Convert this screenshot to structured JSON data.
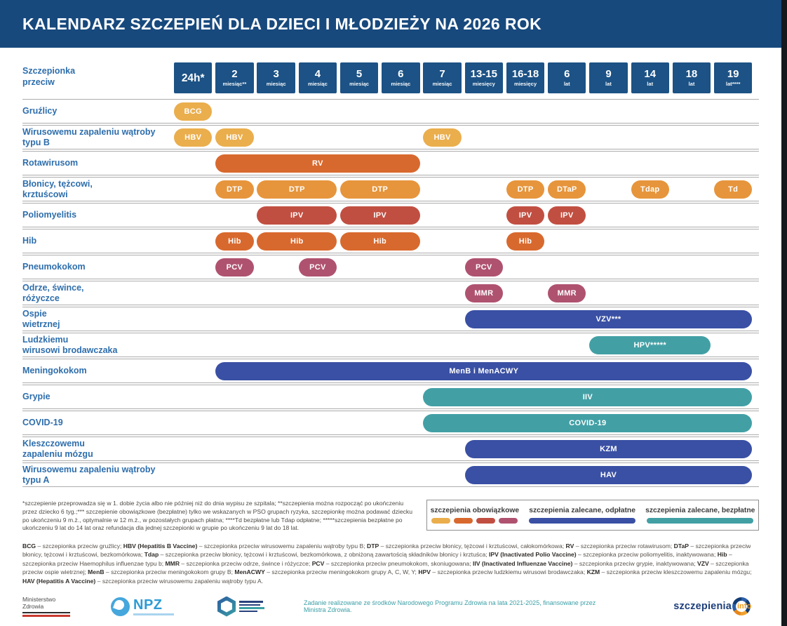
{
  "title": "KALENDARZ SZCZEPIEŃ DLA DZIECI I MŁODZIEŻY NA 2026 ROK",
  "header": {
    "row_label": "Szczepionka\nprzeciw"
  },
  "palette": {
    "yellow": "#EAAE4D",
    "orange": "#E6953C",
    "dark_orange": "#D8692E",
    "red": "#C14F41",
    "maroon": "#AF5270",
    "blue": "#3A50A4",
    "teal": "#42A0A5",
    "navy_title": "#17497D",
    "navy_header_cell": "#1C5285",
    "label_blue": "#2E6EAC"
  },
  "chart_data": {
    "type": "table",
    "title": "KALENDARZ SZCZEPIEŃ DLA DZIECI I MŁODZIEŻY NA 2026 ROK",
    "columns": [
      {
        "age": "24h*",
        "unit": ""
      },
      {
        "age": "2",
        "unit": "miesiąc**"
      },
      {
        "age": "3",
        "unit": "miesiąc"
      },
      {
        "age": "4",
        "unit": "miesiąc"
      },
      {
        "age": "5",
        "unit": "miesiąc"
      },
      {
        "age": "6",
        "unit": "miesiąc"
      },
      {
        "age": "7",
        "unit": "miesiąc"
      },
      {
        "age": "13-15",
        "unit": "miesięcy"
      },
      {
        "age": "16-18",
        "unit": "miesięcy"
      },
      {
        "age": "6",
        "unit": "lat"
      },
      {
        "age": "9",
        "unit": "lat"
      },
      {
        "age": "14",
        "unit": "lat"
      },
      {
        "age": "18",
        "unit": "lat"
      },
      {
        "age": "19",
        "unit": "lat****"
      }
    ],
    "rows": [
      {
        "label": "Gruźlicy",
        "marks": [
          {
            "text": "BCG",
            "col_start": 0,
            "col_end": 0,
            "color": "yellow"
          }
        ]
      },
      {
        "label": "Wirusowemu zapaleniu wątroby\ntypu B",
        "marks": [
          {
            "text": "HBV",
            "col_start": 0,
            "col_end": 0,
            "color": "yellow"
          },
          {
            "text": "HBV",
            "col_start": 1,
            "col_end": 1,
            "color": "yellow"
          },
          {
            "text": "HBV",
            "col_start": 6,
            "col_end": 6,
            "color": "yellow"
          }
        ]
      },
      {
        "label": "Rotawirusom",
        "marks": [
          {
            "text": "RV",
            "col_start": 1,
            "col_end": 5,
            "color": "dark_orange"
          }
        ]
      },
      {
        "label": "Błonicy, tężcowi,\nkrztuścowi",
        "marks": [
          {
            "text": "DTP",
            "col_start": 1,
            "col_end": 1,
            "color": "orange"
          },
          {
            "text": "DTP",
            "col_start": 2,
            "col_end": 3,
            "color": "orange"
          },
          {
            "text": "DTP",
            "col_start": 4,
            "col_end": 5,
            "color": "orange"
          },
          {
            "text": "DTP",
            "col_start": 8,
            "col_end": 8,
            "color": "orange"
          },
          {
            "text": "DTaP",
            "col_start": 9,
            "col_end": 9,
            "color": "orange"
          },
          {
            "text": "Tdap",
            "col_start": 11,
            "col_end": 11,
            "color": "orange"
          },
          {
            "text": "Td",
            "col_start": 13,
            "col_end": 13,
            "color": "orange"
          }
        ]
      },
      {
        "label": "Poliomyelitis",
        "marks": [
          {
            "text": "IPV",
            "col_start": 2,
            "col_end": 3,
            "color": "red"
          },
          {
            "text": "IPV",
            "col_start": 4,
            "col_end": 5,
            "color": "red"
          },
          {
            "text": "IPV",
            "col_start": 8,
            "col_end": 8,
            "color": "red"
          },
          {
            "text": "IPV",
            "col_start": 9,
            "col_end": 9,
            "color": "red"
          }
        ]
      },
      {
        "label": "Hib",
        "marks": [
          {
            "text": "Hib",
            "col_start": 1,
            "col_end": 1,
            "color": "dark_orange"
          },
          {
            "text": "Hib",
            "col_start": 2,
            "col_end": 3,
            "color": "dark_orange"
          },
          {
            "text": "Hib",
            "col_start": 4,
            "col_end": 5,
            "color": "dark_orange"
          },
          {
            "text": "Hib",
            "col_start": 8,
            "col_end": 8,
            "color": "dark_orange"
          }
        ]
      },
      {
        "label": "Pneumokokom",
        "marks": [
          {
            "text": "PCV",
            "col_start": 1,
            "col_end": 1,
            "color": "maroon"
          },
          {
            "text": "PCV",
            "col_start": 3,
            "col_end": 3,
            "color": "maroon"
          },
          {
            "text": "PCV",
            "col_start": 7,
            "col_end": 7,
            "color": "maroon"
          }
        ]
      },
      {
        "label": "Odrze, śwince,\nróżyczce",
        "marks": [
          {
            "text": "MMR",
            "col_start": 7,
            "col_end": 7,
            "color": "maroon"
          },
          {
            "text": "MMR",
            "col_start": 9,
            "col_end": 9,
            "color": "maroon"
          }
        ]
      },
      {
        "label": "Ospie\nwietrznej",
        "marks": [
          {
            "text": "VZV***",
            "col_start": 7,
            "col_end": 13,
            "color": "blue"
          }
        ]
      },
      {
        "label": "Ludzkiemu\nwirusowi brodawczaka",
        "marks": [
          {
            "text": "HPV*****",
            "col_start": 10,
            "col_end": 12,
            "color": "teal"
          }
        ]
      },
      {
        "label": "Meningokokom",
        "marks": [
          {
            "text": "MenB i MenACWY",
            "col_start": 1,
            "col_end": 13,
            "color": "blue"
          }
        ]
      },
      {
        "label": "Grypie",
        "marks": [
          {
            "text": "IIV",
            "col_start": 6,
            "col_end": 13,
            "color": "teal"
          }
        ]
      },
      {
        "label": "COVID-19",
        "marks": [
          {
            "text": "COVID-19",
            "col_start": 6,
            "col_end": 13,
            "color": "teal"
          }
        ]
      },
      {
        "label": "Kleszczowemu\nzapaleniu mózgu",
        "marks": [
          {
            "text": "KZM",
            "col_start": 7,
            "col_end": 13,
            "color": "blue"
          }
        ]
      },
      {
        "label": "Wirusowemu zapaleniu wątroby\ntypu A",
        "marks": [
          {
            "text": "HAV",
            "col_start": 7,
            "col_end": 13,
            "color": "blue"
          }
        ]
      }
    ]
  },
  "footnotes": "*szczepienie przeprowadza się w 1. dobie życia albo nie później niż do dnia wypisu ze szpitala; **szczepienia można rozpocząć po ukończeniu przez dziecko 6 tyg.;*** szczepienie obowiązkowe (bezpłatne) tylko we wskazanych w PSO grupach ryzyka, szczepionkę można podawać dziecku po ukończeniu 9 m.ż., optymalnie w 12 m.ż., w pozostałych grupach płatna; ****Td bezpłatne lub Tdap odpłatne; *****szczepienia bezpłatne po ukończeniu 9 lat do 14 lat oraz refundacja dla jednej szczepionki w grupie po ukończeniu 9 lat do 18 lat.",
  "legend": {
    "items": [
      {
        "label": "szczepienia obowiązkowe",
        "swatches": [
          "yellow",
          "dark_orange",
          "red",
          "maroon"
        ]
      },
      {
        "label": "szczepienia zalecane, odpłatne",
        "swatches": [
          "blue"
        ]
      },
      {
        "label": "szczepienia zalecane, bezpłatne",
        "swatches": [
          "teal"
        ]
      }
    ]
  },
  "definitions": [
    {
      "term": "BCG",
      "desc": "– szczepionka przeciw gruźlicy;"
    },
    {
      "term": "HBV (Hepatitis B Vaccine)",
      "desc": "– szczepionka przeciw wirusowemu zapaleniu wątroby typu B;"
    },
    {
      "term": "DTP",
      "desc": "– szczepionka przeciw błonicy, tężcowi i krztuścowi, całokomórkowa;"
    },
    {
      "term": "RV",
      "desc": "– szczepionka przeciw rotawirusom;"
    },
    {
      "term": "DTaP",
      "desc": "– szczepionka przeciw błonicy, tężcowi i krztuścowi, bezkomórkowa;"
    },
    {
      "term": "Tdap",
      "desc": "– szczepionka przeciw błonicy, tężcowi i krztuścowi, bezkomórkowa, z obniżoną zawartością składników błonicy i krztuśca;"
    },
    {
      "term": "IPV (Inactivated Polio Vaccine)",
      "desc": "– szczepionka przeciw poliomyelitis, inaktywowana;"
    },
    {
      "term": "Hib",
      "desc": "– szczepionka przeciw Haemophilus influenzae typu b;"
    },
    {
      "term": "MMR",
      "desc": "– szczepionka przeciw odrze, śwince i różyczce;"
    },
    {
      "term": "PCV",
      "desc": "– szczepionka przeciw pneumokokom, skoniugowana;"
    },
    {
      "term": "IIV (Inactivated Influenzae Vaccine)",
      "desc": "– szczepionka przeciw grypie, inaktywowana;"
    },
    {
      "term": "VZV",
      "desc": "– szczepionka przeciw ospie wietrznej;"
    },
    {
      "term": "MenB",
      "desc": "– szczepionka przeciw meningokokom grupy B;"
    },
    {
      "term": "MenACWY",
      "desc": "– szczepionka przeciw meningokokom grupy A, C, W, Y;"
    },
    {
      "term": "HPV",
      "desc": "– szczepionka przeciw ludzkiemu wirusowi brodawczaka;"
    },
    {
      "term": "KZM",
      "desc": "– szczepionka przeciw kleszczowemu zapaleniu mózgu;"
    },
    {
      "term": "HAV (Hepatitis A Vaccine)",
      "desc": "– szczepionka przeciw wirusowemu zapaleniu wątroby typu A."
    }
  ],
  "footer": {
    "ministry": "Ministerstwo\nZdrowia",
    "npz": "NPZ",
    "funding_text": "Zadanie realizowane ze środków Narodowego Programu Zdrowia na lata 2021-2025, finansowane przez Ministra Zdrowia.",
    "brand": "szczepienia",
    "brand_suffix": "info"
  }
}
